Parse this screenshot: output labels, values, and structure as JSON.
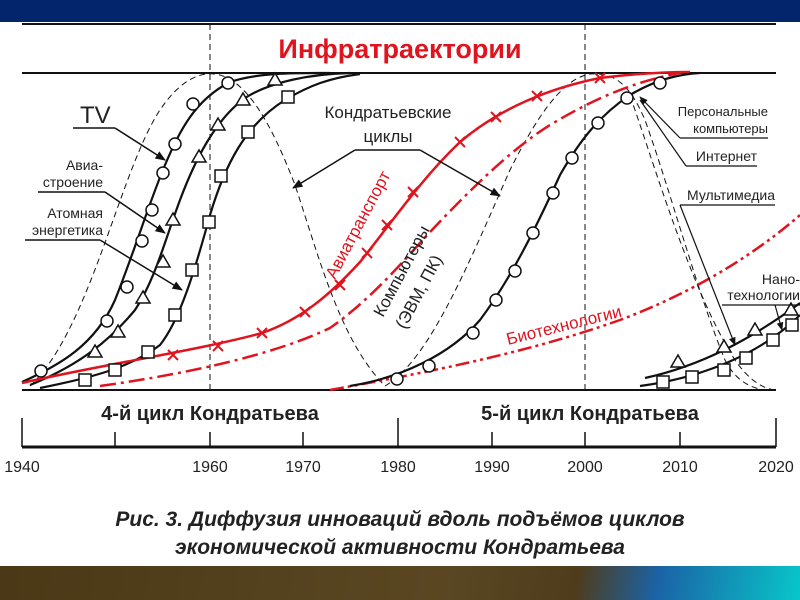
{
  "title": "Инфратраектории",
  "labels": {
    "tv": "TV",
    "avia_1": "Авиа-",
    "avia_2": "строение",
    "atom_1": "Атомная",
    "atom_2": "энергетика",
    "kondr_1": "Кондратьевские",
    "kondr_2": "циклы",
    "aviatransport": "Авиатранспорт",
    "computers_1": "Компьютеры",
    "computers_2": "(ЭВМ, ПК)",
    "biotech": "Биотехнологии",
    "pc_1": "Персональные",
    "pc_2": "компьютеры",
    "internet": "Интернет",
    "multimedia": "Мультимедиа",
    "nano_1": "Нано-",
    "nano_2": "технологии"
  },
  "cycles": [
    "4-й цикл Кондратьева",
    "5-й цикл Кондратьева"
  ],
  "axis_ticks": [
    "1940",
    "1960",
    "1970",
    "1980",
    "1990",
    "2000",
    "2010",
    "2020"
  ],
  "caption": [
    "Рис. 3. Диффузия инноваций вдоль подъёмов циклов",
    "экономической активности Кондратьева"
  ],
  "colors": {
    "header_bar": "#02256b",
    "accent_red": "#e0141e",
    "ink": "#111111"
  }
}
